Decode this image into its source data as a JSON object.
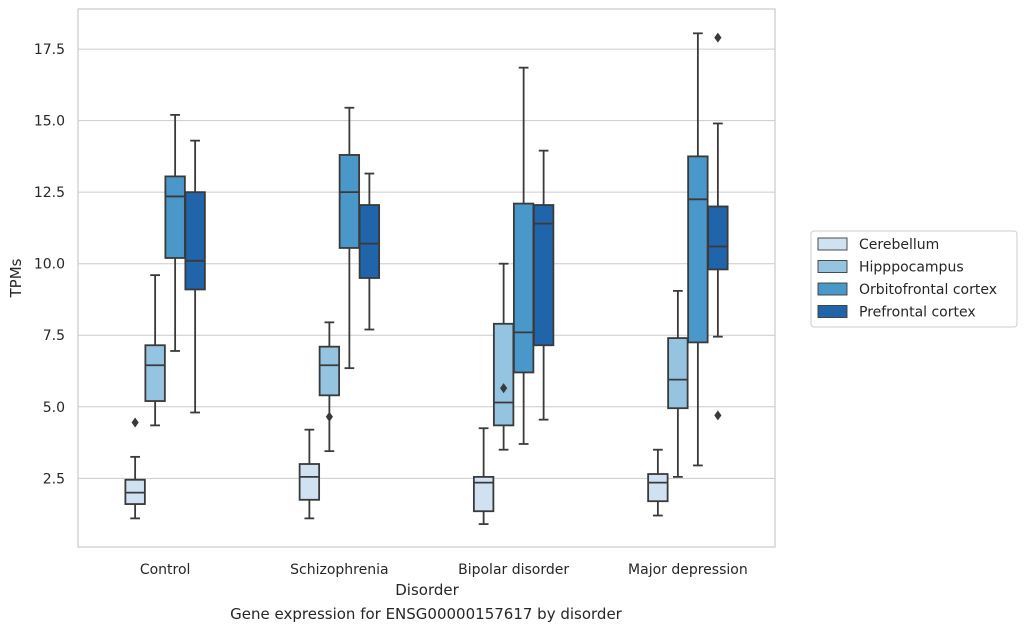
{
  "caption": "Gene expression for ENSG00000157617 by disorder",
  "colors": {
    "Cerebellum": "#d0e1f2",
    "Hipppocampus": "#94c4df",
    "Orbitofrontal cortex": "#4a98c9",
    "Prefrontal cortex": "#2064aa",
    "grid": "#cccccc",
    "frame": "#cccccc",
    "line": "#3a3a3a"
  },
  "chart_data": {
    "type": "box",
    "title": "",
    "xlabel": "Disorder",
    "ylabel": "TPMs",
    "ylim": [
      0.1,
      18.9
    ],
    "grid": "horizontal",
    "legend_position": "right",
    "yticks": [
      2.5,
      5.0,
      7.5,
      10.0,
      12.5,
      15.0,
      17.5
    ],
    "ytick_labels": [
      "2.5",
      "5.0",
      "7.5",
      "10.0",
      "12.5",
      "15.0",
      "17.5"
    ],
    "categories": [
      "Control",
      "Schizophrenia",
      "Bipolar disorder",
      "Major depression"
    ],
    "series": [
      {
        "name": "Cerebellum",
        "boxes": [
          {
            "whisker_low": 1.1,
            "q1": 1.6,
            "median": 2.0,
            "q3": 2.45,
            "whisker_high": 3.25,
            "outliers": [
              4.45
            ]
          },
          {
            "whisker_low": 1.1,
            "q1": 1.75,
            "median": 2.55,
            "q3": 3.0,
            "whisker_high": 4.2,
            "outliers": []
          },
          {
            "whisker_low": 0.9,
            "q1": 1.35,
            "median": 2.35,
            "q3": 2.55,
            "whisker_high": 4.25,
            "outliers": []
          },
          {
            "whisker_low": 1.2,
            "q1": 1.7,
            "median": 2.35,
            "q3": 2.65,
            "whisker_high": 3.5,
            "outliers": []
          }
        ]
      },
      {
        "name": "Hipppocampus",
        "boxes": [
          {
            "whisker_low": 4.35,
            "q1": 5.2,
            "median": 6.45,
            "q3": 7.15,
            "whisker_high": 9.6,
            "outliers": []
          },
          {
            "whisker_low": 3.45,
            "q1": 5.4,
            "median": 6.45,
            "q3": 7.1,
            "whisker_high": 7.95,
            "outliers": [
              4.65
            ]
          },
          {
            "whisker_low": 3.5,
            "q1": 4.35,
            "median": 5.15,
            "q3": 7.9,
            "whisker_high": 10.0,
            "outliers": [
              5.65
            ]
          },
          {
            "whisker_low": 2.55,
            "q1": 4.95,
            "median": 5.95,
            "q3": 7.4,
            "whisker_high": 9.05,
            "outliers": []
          }
        ]
      },
      {
        "name": "Orbitofrontal cortex",
        "boxes": [
          {
            "whisker_low": 6.95,
            "q1": 10.2,
            "median": 12.35,
            "q3": 13.05,
            "whisker_high": 15.2,
            "outliers": []
          },
          {
            "whisker_low": 6.35,
            "q1": 10.55,
            "median": 12.5,
            "q3": 13.8,
            "whisker_high": 15.45,
            "outliers": []
          },
          {
            "whisker_low": 3.7,
            "q1": 6.2,
            "median": 7.6,
            "q3": 12.1,
            "whisker_high": 16.85,
            "outliers": []
          },
          {
            "whisker_low": 2.95,
            "q1": 7.25,
            "median": 12.25,
            "q3": 13.75,
            "whisker_high": 18.05,
            "outliers": []
          }
        ]
      },
      {
        "name": "Prefrontal cortex",
        "boxes": [
          {
            "whisker_low": 4.8,
            "q1": 9.1,
            "median": 10.1,
            "q3": 12.5,
            "whisker_high": 14.3,
            "outliers": []
          },
          {
            "whisker_low": 7.7,
            "q1": 9.5,
            "median": 10.7,
            "q3": 12.05,
            "whisker_high": 13.15,
            "outliers": []
          },
          {
            "whisker_low": 4.55,
            "q1": 7.15,
            "median": 11.4,
            "q3": 12.05,
            "whisker_high": 13.95,
            "outliers": []
          },
          {
            "whisker_low": 7.45,
            "q1": 9.8,
            "median": 10.6,
            "q3": 12.0,
            "whisker_high": 14.9,
            "outliers": [
              4.7,
              17.9
            ]
          }
        ]
      }
    ]
  }
}
